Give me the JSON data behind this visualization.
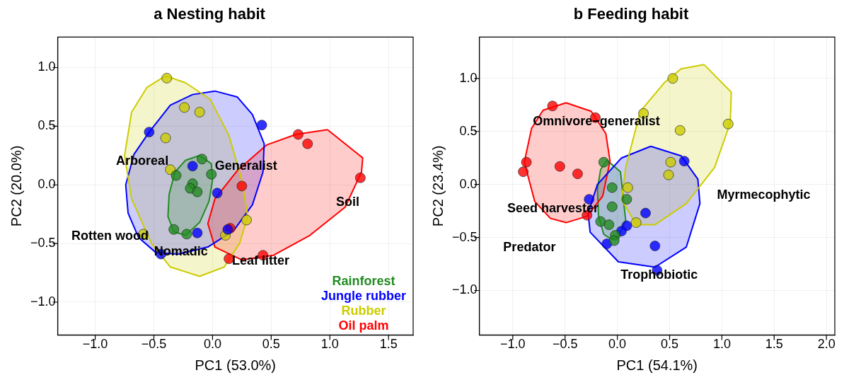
{
  "chart_data": [
    {
      "type": "scatter",
      "title": "a Nesting habit",
      "xlabel": "PC1 (53.0%)",
      "ylabel": "PC2 (20.0%)",
      "xlim": [
        -1.32,
        1.71
      ],
      "ylim": [
        -1.28,
        1.26
      ],
      "xticks": [
        {
          "value": -1,
          "label": "−1.0"
        },
        {
          "value": -0.5,
          "label": "−0.5"
        },
        {
          "value": 0,
          "label": "0.0"
        },
        {
          "value": 0.5,
          "label": "0.5"
        },
        {
          "value": 1,
          "label": "1.0"
        },
        {
          "value": 1.5,
          "label": "1.5"
        }
      ],
      "yticks": [
        {
          "value": -1,
          "label": "−1.0"
        },
        {
          "value": -0.5,
          "label": "−0.5"
        },
        {
          "value": 0,
          "label": "0.0"
        },
        {
          "value": 0.5,
          "label": "0.5"
        },
        {
          "value": 1,
          "label": "1.0"
        }
      ],
      "grid": true,
      "legend": "bottom right",
      "marker": "circle",
      "series": [
        {
          "type": "area",
          "marker": "none",
          "color": "#cccc00",
          "x": [
            -0.4,
            -0.23,
            -0.02,
            0.14,
            0.25,
            0.3,
            0.23,
            0.1,
            -0.11,
            -0.36,
            -0.52,
            -0.69,
            -0.75,
            -0.69,
            -0.56,
            -0.4
          ],
          "values": [
            0.93,
            0.87,
            0.73,
            0.42,
            0.04,
            -0.27,
            -0.5,
            -0.7,
            -0.78,
            -0.7,
            -0.5,
            -0.12,
            0.25,
            0.62,
            0.83,
            0.93
          ]
        },
        {
          "type": "area",
          "marker": "none",
          "color": "#0000ff",
          "x": [
            0.02,
            0.21,
            0.34,
            0.44,
            0.43,
            0.34,
            0.18,
            -0.04,
            -0.29,
            -0.48,
            -0.63,
            -0.72,
            -0.74,
            -0.67,
            -0.54,
            -0.36,
            -0.17,
            0.02
          ],
          "values": [
            0.8,
            0.75,
            0.6,
            0.35,
            0.11,
            -0.17,
            -0.39,
            -0.53,
            -0.59,
            -0.58,
            -0.45,
            -0.24,
            0.0,
            0.26,
            0.45,
            0.68,
            0.77,
            0.8
          ]
        },
        {
          "type": "area",
          "marker": "none",
          "color": "#ff0000",
          "x": [
            0.98,
            1.28,
            1.27,
            1.13,
            0.83,
            0.52,
            0.25,
            0.02,
            -0.04,
            0.02,
            0.21,
            0.46,
            0.71,
            0.98
          ],
          "values": [
            0.47,
            0.23,
            0.11,
            -0.19,
            -0.43,
            -0.6,
            -0.64,
            -0.53,
            -0.33,
            -0.12,
            0.12,
            0.34,
            0.43,
            0.47
          ]
        },
        {
          "type": "area",
          "marker": "none",
          "color": "#228b22",
          "x": [
            -0.11,
            -0.01,
            0.0,
            -0.03,
            -0.11,
            -0.23,
            -0.33,
            -0.38,
            -0.37,
            -0.32,
            -0.23,
            -0.11
          ],
          "values": [
            0.25,
            0.18,
            0.04,
            -0.14,
            -0.32,
            -0.43,
            -0.4,
            -0.27,
            -0.08,
            0.11,
            0.21,
            0.25
          ]
        },
        {
          "name": "Rainforest",
          "color": "#228b22",
          "x": [
            -0.09,
            -0.31,
            -0.01,
            -0.17,
            -0.19,
            -0.13,
            -0.33,
            -0.22
          ],
          "values": [
            0.22,
            0.08,
            0.09,
            0.01,
            -0.03,
            -0.06,
            -0.38,
            -0.42
          ]
        },
        {
          "name": "Jungle rubber",
          "color": "#0000ff",
          "x": [
            -0.54,
            -0.17,
            0.04,
            -0.13,
            -0.44,
            0.42,
            0.13
          ],
          "values": [
            0.45,
            0.16,
            -0.07,
            -0.41,
            -0.59,
            0.51,
            -0.38
          ]
        },
        {
          "name": "Rubber",
          "color": "#cccc00",
          "x": [
            -0.39,
            -0.24,
            -0.11,
            -0.4,
            -0.36,
            -0.59,
            0.29,
            0.11
          ],
          "values": [
            0.91,
            0.66,
            0.62,
            0.4,
            0.13,
            -0.42,
            -0.3,
            -0.43
          ]
        },
        {
          "name": "Oil palm",
          "color": "#ff0000",
          "x": [
            0.73,
            0.81,
            1.26,
            0.25,
            0.15,
            0.14,
            0.43
          ],
          "values": [
            0.43,
            0.35,
            0.06,
            -0.01,
            -0.37,
            -0.63,
            -0.6
          ]
        }
      ],
      "annotations": [
        "Arboreal",
        "Generalist",
        "Soil",
        "Rotten wood",
        {
          "text": "Nomadic",
          "x": -0.27,
          "y": -0.57
        },
        {
          "text": "Leaf litter",
          "x": 0.41,
          "y": -0.65
        }
      ]
    },
    {
      "type": "scatter",
      "title": "b Feeding habit",
      "xlabel": "PC1 (54.1%)",
      "ylabel": "PC2 (23.4%)",
      "xlim": [
        -1.32,
        2.08
      ],
      "ylim": [
        -1.42,
        1.39
      ],
      "xticks": [
        {
          "value": -1,
          "label": "−1.0"
        },
        {
          "value": -0.5,
          "label": "−0.5"
        },
        {
          "value": 0,
          "label": "0.0"
        },
        {
          "value": 0.5,
          "label": "0.5"
        },
        {
          "value": 1,
          "label": "1.0"
        },
        {
          "value": 1.5,
          "label": "1.5"
        },
        {
          "value": 2,
          "label": "2.0"
        }
      ],
      "yticks": [
        {
          "value": -1,
          "label": "−1.0"
        },
        {
          "value": -0.5,
          "label": "−0.5"
        },
        {
          "value": 0,
          "label": "0.0"
        },
        {
          "value": 0.5,
          "label": "0.5"
        },
        {
          "value": 1,
          "label": "1.0"
        }
      ],
      "grid": true,
      "marker": "circle",
      "series": [
        {
          "type": "area",
          "marker": "none",
          "color": "#cccc00",
          "x": [
            0.83,
            1.09,
            1.08,
            0.93,
            0.66,
            0.36,
            0.18,
            0.04,
            0.08,
            0.22,
            0.45,
            0.61,
            0.83
          ],
          "values": [
            1.13,
            0.87,
            0.58,
            0.16,
            -0.18,
            -0.38,
            -0.38,
            -0.14,
            0.16,
            0.69,
            0.96,
            1.09,
            1.13
          ]
        },
        {
          "type": "area",
          "marker": "none",
          "color": "#0000ff",
          "x": [
            0.32,
            0.61,
            0.77,
            0.79,
            0.66,
            0.36,
            0.01,
            -0.26,
            -0.28,
            -0.19,
            0.04,
            0.32
          ],
          "values": [
            0.36,
            0.27,
            0.05,
            -0.18,
            -0.59,
            -0.78,
            -0.73,
            -0.45,
            -0.27,
            0.0,
            0.25,
            0.36
          ]
        },
        {
          "type": "area",
          "marker": "none",
          "color": "#ff0000",
          "x": [
            -0.49,
            -0.25,
            -0.11,
            -0.07,
            -0.14,
            -0.29,
            -0.49,
            -0.64,
            -0.79,
            -0.89,
            -0.82,
            -0.71,
            -0.49
          ],
          "values": [
            0.77,
            0.69,
            0.48,
            0.22,
            -0.11,
            -0.3,
            -0.36,
            -0.32,
            -0.16,
            0.21,
            0.53,
            0.7,
            0.77
          ]
        },
        {
          "type": "area",
          "marker": "none",
          "color": "#228b22",
          "x": [
            -0.1,
            0.03,
            0.05,
            0.08,
            0.01,
            -0.05,
            -0.13,
            -0.18,
            -0.19,
            -0.16,
            -0.1
          ],
          "values": [
            0.23,
            0.12,
            -0.07,
            -0.34,
            -0.49,
            -0.52,
            -0.47,
            -0.3,
            -0.04,
            0.14,
            0.23
          ]
        },
        {
          "color": "#228b22",
          "x": [
            -0.13,
            -0.05,
            -0.05,
            -0.16,
            -0.08,
            -0.02,
            -0.03,
            0.09
          ],
          "values": [
            0.21,
            -0.03,
            -0.21,
            -0.35,
            -0.38,
            -0.48,
            -0.53,
            -0.14
          ]
        },
        {
          "color": "#0000ff",
          "x": [
            0.64,
            0.27,
            0.09,
            0.04,
            -0.1,
            0.36,
            0.38,
            -0.27
          ],
          "values": [
            0.22,
            -0.27,
            -0.39,
            -0.44,
            -0.56,
            -0.58,
            -0.81,
            -0.14
          ]
        },
        {
          "color": "#cccc00",
          "x": [
            0.53,
            0.25,
            0.6,
            1.06,
            0.51,
            0.49,
            0.1,
            0.18
          ],
          "values": [
            1.0,
            0.67,
            0.51,
            0.57,
            0.21,
            0.09,
            -0.03,
            -0.36
          ]
        },
        {
          "color": "#ff0000",
          "x": [
            -0.62,
            -0.21,
            -0.87,
            -0.9,
            -0.55,
            -0.38,
            -0.29
          ],
          "values": [
            0.74,
            0.63,
            0.21,
            0.12,
            0.17,
            0.1,
            -0.29
          ]
        }
      ],
      "annotations": [
        {
          "text": "Omnivore−generalist",
          "x": -0.2,
          "y": 0.59
        },
        "Seed harvester",
        "Predator",
        {
          "text": "Trophobiotic",
          "x": 0.4,
          "y": -0.86
        },
        "Myrmecophytic"
      ]
    }
  ]
}
